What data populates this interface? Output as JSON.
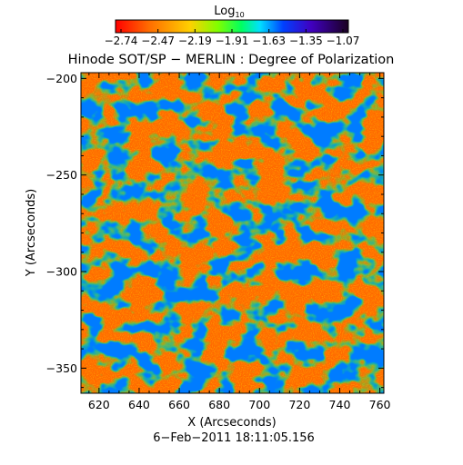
{
  "colorbar": {
    "label_main": "Log",
    "label_sub": "10",
    "ticks": [
      "−2.74",
      "−2.47",
      "−2.19",
      "−1.91",
      "−1.63",
      "−1.35",
      "−1.07"
    ]
  },
  "title": "Hinode SOT/SP − MERLIN : Degree of Polarization",
  "footer": "6−Feb−2011 18:11:05.156",
  "chart_data": {
    "type": "heatmap",
    "title": "Hinode SOT/SP − MERLIN : Degree of Polarization",
    "xlabel": "X (Arcseconds)",
    "ylabel": "Y (Arcseconds)",
    "xlim": [
      611,
      762
    ],
    "ylim": [
      -363,
      -197
    ],
    "x_ticks": [
      620,
      640,
      660,
      680,
      700,
      720,
      740,
      760
    ],
    "y_ticks": [
      -200,
      -250,
      -300,
      -350
    ],
    "x_tick_labels": [
      "620",
      "640",
      "660",
      "680",
      "700",
      "720",
      "740",
      "760"
    ],
    "y_tick_labels": [
      "−200",
      "−250",
      "−300",
      "−350"
    ],
    "colorbar_range": [
      -2.74,
      -1.07
    ],
    "colormap_stops": [
      "#ff0000",
      "#ff7f00",
      "#ffff00",
      "#00ff00",
      "#00ffff",
      "#0000ff",
      "#2a004a"
    ],
    "grid": false
  }
}
